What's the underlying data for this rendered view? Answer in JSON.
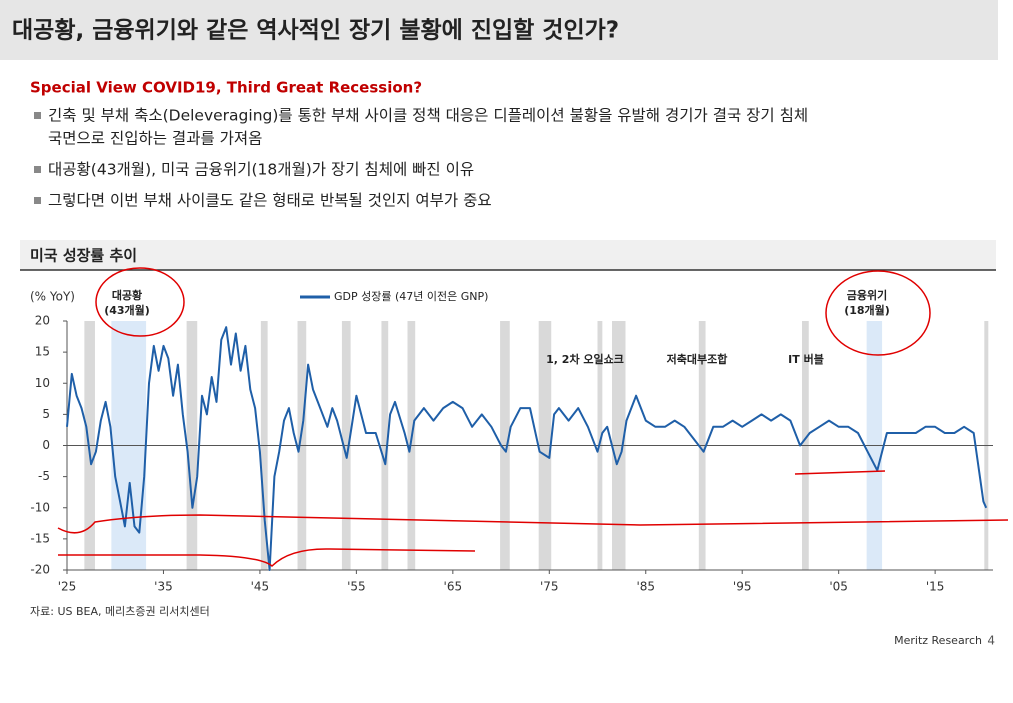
{
  "header": {
    "title": "대공황, 금융위기와 같은 역사적인 장기 불황에 진입할 것인가?"
  },
  "subtitle": "Special View COVID19, Third Great Recession?",
  "bullets": [
    [
      "긴축 및 부채 축소(Deleveraging)를 통한 부채 사이클 정책 대응은 디플레이션 불황을 유발해 경기가 결국 장기 침체",
      "국면으로 진입하는 결과를 가져옴"
    ],
    [
      "대공황(43개월), 미국 금융위기(18개월)가 장기 침체에 빠진 이유"
    ],
    [
      "그렇다면 이번 부채 사이클도 같은 형태로 반복될 것인지 여부가 중요"
    ]
  ],
  "section_title": "미국 성장률 추이",
  "chart_data": {
    "type": "line",
    "y_unit": "(% YoY)",
    "x": [
      1925,
      1925.5,
      1926,
      1926.5,
      1927,
      1927.5,
      1928,
      1928.5,
      1929,
      1929.5,
      1930,
      1930.5,
      1931,
      1931.5,
      1932,
      1932.5,
      1933,
      1933.5,
      1934,
      1934.5,
      1935,
      1935.5,
      1936,
      1936.5,
      1937,
      1937.5,
      1938,
      1938.5,
      1939,
      1939.5,
      1940,
      1940.5,
      1941,
      1941.5,
      1942,
      1942.5,
      1943,
      1943.5,
      1944,
      1944.5,
      1945,
      1945.5,
      1946,
      1946.5,
      1947,
      1947.5,
      1948,
      1948.5,
      1949,
      1949.5,
      1950,
      1950.5,
      1951,
      1952,
      1952.5,
      1953,
      1954,
      1954.5,
      1955,
      1955.5,
      1956,
      1957,
      1958,
      1958.5,
      1959,
      1960,
      1960.5,
      1961,
      1962,
      1963,
      1964,
      1965,
      1966,
      1967,
      1968,
      1969,
      1970,
      1970.5,
      1971,
      1972,
      1973,
      1974,
      1975,
      1975.5,
      1976,
      1977,
      1978,
      1979,
      1980,
      1980.5,
      1981,
      1982,
      1982.5,
      1983,
      1984,
      1985,
      1986,
      1987,
      1988,
      1989,
      1990,
      1991,
      1992,
      1993,
      1994,
      1995,
      1996,
      1997,
      1998,
      1999,
      2000,
      2001,
      2002,
      2003,
      2004,
      2005,
      2006,
      2007,
      2008,
      2009,
      2010,
      2011,
      2012,
      2013,
      2014,
      2015,
      2016,
      2017,
      2018,
      2019,
      2020,
      2020.3
    ],
    "series": [
      {
        "name": "GDP 성장률 (47년 이전은 GNP)",
        "color": "#1f5fa8",
        "values": [
          3,
          11.5,
          8,
          6,
          3,
          -3,
          -1,
          4,
          7,
          3,
          -5,
          -9,
          -13,
          -6,
          -13,
          -14,
          -5,
          10,
          16,
          12,
          16,
          14,
          8,
          13,
          5,
          -1,
          -10,
          -5,
          8,
          5,
          11,
          7,
          17,
          19,
          13,
          18,
          12,
          16,
          9,
          6,
          -1,
          -12,
          -20,
          -5,
          -1,
          4,
          6,
          2,
          -1,
          4,
          13,
          9,
          7,
          3,
          6,
          4,
          -2,
          3,
          8,
          5,
          2,
          2,
          -3,
          5,
          7,
          2,
          -1,
          4,
          6,
          4,
          6,
          7,
          6,
          3,
          5,
          3,
          0,
          -1,
          3,
          6,
          6,
          -1,
          -2,
          5,
          6,
          4,
          6,
          3,
          -1,
          2,
          3,
          -3,
          -1,
          4,
          8,
          4,
          3,
          3,
          4,
          3,
          1,
          -1,
          3,
          3,
          4,
          3,
          4,
          5,
          4,
          5,
          4,
          0,
          2,
          3,
          4,
          3,
          3,
          2,
          -1,
          -4,
          2,
          2,
          2,
          2,
          3,
          3,
          2,
          2,
          3,
          2,
          -9,
          -10
        ]
      }
    ],
    "recessions": [
      [
        1926.8,
        1927.9
      ],
      [
        1937.4,
        1938.5
      ],
      [
        1945.1,
        1945.8
      ],
      [
        1948.9,
        1949.8
      ],
      [
        1953.5,
        1954.4
      ],
      [
        1957.6,
        1958.3
      ],
      [
        1960.3,
        1961.1
      ],
      [
        1969.9,
        1970.9
      ],
      [
        1973.9,
        1975.2
      ],
      [
        1980.0,
        1980.5
      ],
      [
        1981.5,
        1982.9
      ],
      [
        1990.5,
        1991.2
      ],
      [
        2001.2,
        2001.9
      ],
      [
        2020.1,
        2020.4
      ]
    ],
    "recession_color": "#d9d9d9",
    "highlight_periods": [
      [
        1929.6,
        1933.2
      ],
      [
        2007.9,
        2009.5
      ]
    ],
    "highlight_color": "#dbe9f8",
    "annotations": [
      [
        "대공황",
        "(43개월)"
      ],
      [
        "금융위기",
        "(18개월)"
      ],
      [
        "1, 2차 오일쇼크"
      ],
      [
        "저축대부조합"
      ],
      [
        "IT 버블"
      ]
    ],
    "xlim": [
      1925,
      2021
    ],
    "xticks": [
      {
        "value": 1925,
        "label": "'25"
      },
      {
        "value": 1935,
        "label": "'35"
      },
      {
        "value": 1945,
        "label": "'45"
      },
      {
        "value": 1955,
        "label": "'55"
      },
      {
        "value": 1965,
        "label": "'65"
      },
      {
        "value": 1975,
        "label": "'75"
      },
      {
        "value": 1985,
        "label": "'85"
      },
      {
        "value": 1995,
        "label": "'95"
      },
      {
        "value": 2005,
        "label": "'05"
      },
      {
        "value": 2015,
        "label": "'15"
      }
    ],
    "ylim": [
      -20,
      20
    ],
    "yticks": [
      -20,
      -15,
      -10,
      -5,
      0,
      5,
      10,
      15,
      20
    ]
  },
  "source": "자료: US BEA, 메리츠증권 리서치센터",
  "footer": {
    "brand": "Meritz Research",
    "page": 4
  }
}
